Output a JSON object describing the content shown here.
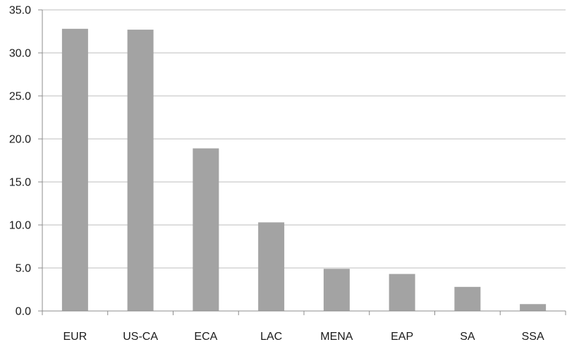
{
  "chart_data": {
    "type": "bar",
    "title": "",
    "xlabel": "",
    "ylabel": "",
    "categories": [
      "EUR",
      "US-CA",
      "ECA",
      "LAC",
      "MENA",
      "EAP",
      "SA",
      "SSA"
    ],
    "values": [
      32.8,
      32.7,
      18.9,
      10.3,
      4.9,
      4.3,
      2.8,
      0.8
    ],
    "ylim": [
      0,
      35
    ],
    "y_ticks": [
      "0.0",
      "5.0",
      "10.0",
      "15.0",
      "20.0",
      "25.0",
      "30.0",
      "35.0"
    ],
    "grid": true,
    "legend": "none",
    "colors": {
      "bar": "#a3a3a3",
      "grid": "#bdbdbd",
      "axis": "#8c8c8c"
    }
  }
}
